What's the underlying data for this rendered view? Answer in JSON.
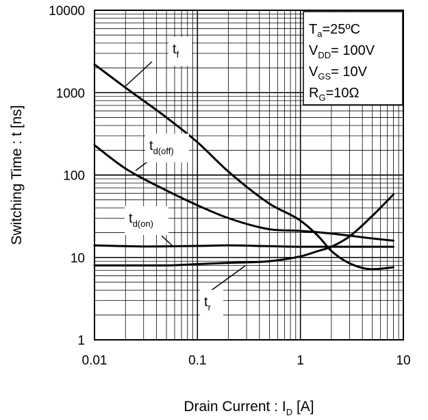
{
  "chart_data": {
    "type": "line",
    "xlabel": {
      "main": "Drain Current : I",
      "sub": "D",
      "unit": " [A]"
    },
    "ylabel": "Switching Time : t [ns]",
    "xscale": "log",
    "yscale": "log",
    "xlim": [
      0.01,
      10
    ],
    "ylim": [
      1,
      10000
    ],
    "grid": true,
    "x_ticks": [
      {
        "value": 0.01,
        "label": "0.01"
      },
      {
        "value": 0.1,
        "label": "0.1"
      },
      {
        "value": 1,
        "label": "1"
      },
      {
        "value": 10,
        "label": "10"
      }
    ],
    "y_ticks": [
      {
        "value": 1,
        "label": "1"
      },
      {
        "value": 10,
        "label": "10"
      },
      {
        "value": 100,
        "label": "100"
      },
      {
        "value": 1000,
        "label": "1000"
      },
      {
        "value": 10000,
        "label": "10000"
      }
    ],
    "conditions": [
      {
        "main": "T",
        "sub": "a",
        "rest": "=25ºC"
      },
      {
        "main": "V",
        "sub": "DD",
        "rest": "= 100V"
      },
      {
        "main": "V",
        "sub": "GS",
        "rest": "= 10V"
      },
      {
        "main": "R",
        "sub": "G",
        "rest": "=10Ω"
      }
    ],
    "series": [
      {
        "name": "tf",
        "label_main": "t",
        "label_sub": "f",
        "x": [
          0.01,
          0.02,
          0.05,
          0.1,
          0.2,
          0.5,
          1,
          1.5,
          2,
          3,
          5,
          8
        ],
        "y": [
          2200,
          1150,
          500,
          250,
          110,
          45,
          28,
          18,
          12,
          8.5,
          7.2,
          7.6
        ]
      },
      {
        "name": "td(off)",
        "label_main": "t",
        "label_sub": "d(off)",
        "x": [
          0.01,
          0.02,
          0.05,
          0.1,
          0.2,
          0.5,
          1,
          2,
          5,
          8
        ],
        "y": [
          230,
          120,
          65,
          43,
          30,
          22,
          21,
          19.5,
          17,
          16
        ]
      },
      {
        "name": "td(on)",
        "label_main": "t",
        "label_sub": "d(on)",
        "x": [
          0.01,
          0.03,
          0.1,
          0.2,
          0.5,
          1,
          2,
          5,
          8
        ],
        "y": [
          14,
          13.6,
          13.8,
          14,
          13.7,
          13.5,
          13.5,
          13.5,
          13.5
        ]
      },
      {
        "name": "tr",
        "label_main": "t",
        "label_sub": "r",
        "x": [
          0.01,
          0.05,
          0.1,
          0.2,
          0.5,
          1,
          1.5,
          2,
          3,
          5,
          8
        ],
        "y": [
          8,
          8,
          8.3,
          8.6,
          9,
          10.3,
          12,
          13.5,
          18,
          32,
          58
        ]
      }
    ]
  }
}
